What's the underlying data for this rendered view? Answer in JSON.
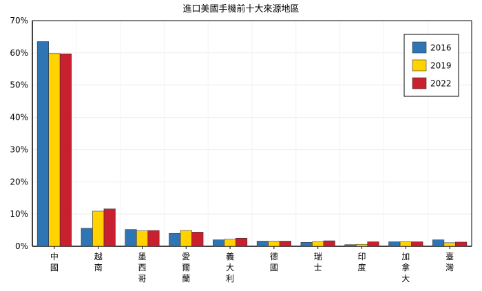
{
  "chart_data": {
    "type": "bar",
    "title": "進口美國手機前十大來源地區",
    "categories": [
      "中國",
      "越南",
      "墨西哥",
      "愛爾蘭",
      "義大利",
      "德國",
      "瑞士",
      "印度",
      "加拿大",
      "臺灣"
    ],
    "series": [
      {
        "name": "2016",
        "color": "#2e75b6",
        "values": [
          63.5,
          5.6,
          5.2,
          4.0,
          2.0,
          1.6,
          1.2,
          0.5,
          1.4,
          2.0
        ]
      },
      {
        "name": "2019",
        "color": "#ffd200",
        "values": [
          59.8,
          10.9,
          4.8,
          4.9,
          2.2,
          1.6,
          1.4,
          0.6,
          1.4,
          1.1
        ]
      },
      {
        "name": "2022",
        "color": "#c8202e",
        "values": [
          59.7,
          11.6,
          4.9,
          4.4,
          2.5,
          1.6,
          1.7,
          1.4,
          1.4,
          1.3
        ]
      }
    ],
    "ylim": [
      0,
      70
    ],
    "yticks": [
      "0%",
      "10%",
      "20%",
      "30%",
      "40%",
      "50%",
      "60%",
      "70%"
    ],
    "grid": true,
    "legend_position": "top-right"
  }
}
